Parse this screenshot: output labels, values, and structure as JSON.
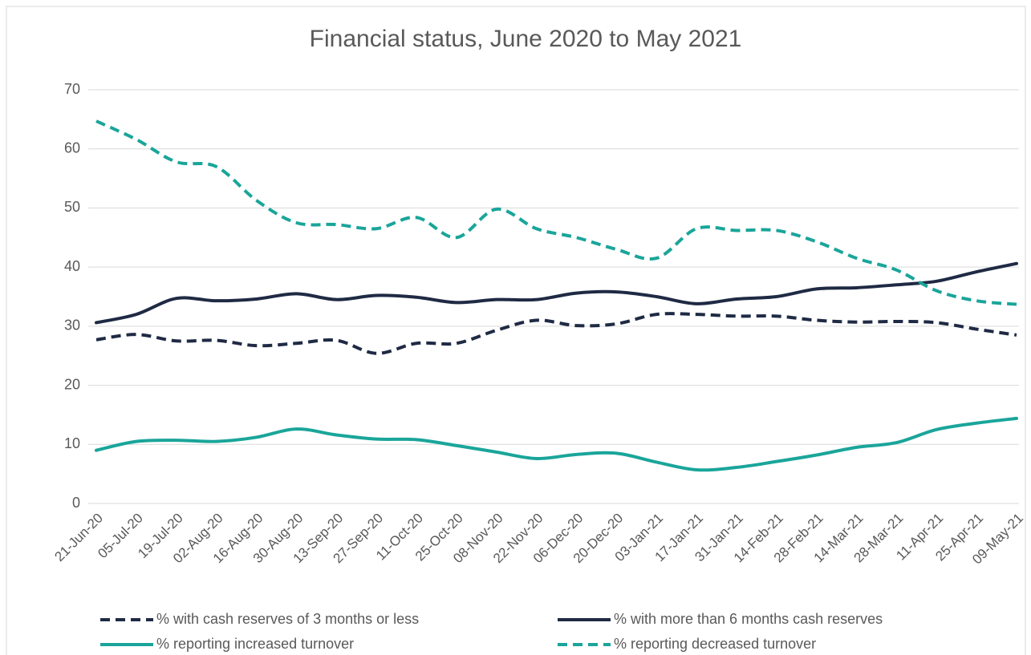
{
  "chart_data": {
    "type": "line",
    "title": "Financial status, June 2020 to May 2021",
    "categories": [
      "21-Jun-20",
      "05-Jul-20",
      "19-Jul-20",
      "02-Aug-20",
      "16-Aug-20",
      "30-Aug-20",
      "13-Sep-20",
      "27-Sep-20",
      "11-Oct-20",
      "25-Oct-20",
      "08-Nov-20",
      "22-Nov-20",
      "06-Dec-20",
      "20-Dec-20",
      "03-Jan-21",
      "17-Jan-21",
      "31-Jan-21",
      "14-Feb-21",
      "28-Feb-21",
      "14-Mar-21",
      "28-Mar-21",
      "11-Apr-21",
      "25-Apr-21",
      "09-May-21"
    ],
    "series": [
      {
        "name": "% with cash reserves of 3 months or less",
        "color": "#1f2a44",
        "dashed": true,
        "values": [
          27.7,
          28.6,
          27.5,
          27.6,
          26.7,
          27.1,
          27.6,
          25.4,
          27.1,
          27.1,
          29.3,
          31.0,
          30.1,
          30.4,
          32.0,
          32.0,
          31.7,
          31.7,
          31.0,
          30.7,
          30.8,
          30.6,
          29.5,
          28.5
        ]
      },
      {
        "name": "% with more than 6 months cash reserves",
        "color": "#1f2a44",
        "dashed": false,
        "values": [
          30.6,
          32.0,
          34.7,
          34.3,
          34.6,
          35.5,
          34.5,
          35.2,
          34.9,
          34.0,
          34.5,
          34.5,
          35.6,
          35.8,
          35.0,
          33.8,
          34.6,
          35.0,
          36.3,
          36.5,
          37.0,
          37.6,
          39.2,
          40.6
        ]
      },
      {
        "name": "% reporting increased turnover",
        "color": "#1aa59a",
        "dashed": false,
        "values": [
          9.0,
          10.5,
          10.7,
          10.5,
          11.2,
          12.6,
          11.6,
          10.9,
          10.8,
          9.8,
          8.7,
          7.6,
          8.3,
          8.5,
          7.0,
          5.7,
          6.1,
          7.1,
          8.2,
          9.5,
          10.3,
          12.5,
          13.6,
          14.4
        ]
      },
      {
        "name": "% reporting decreased turnover",
        "color": "#1aa59a",
        "dashed": true,
        "values": [
          64.7,
          61.6,
          57.8,
          57.0,
          51.3,
          47.5,
          47.2,
          46.5,
          48.4,
          45.0,
          49.8,
          46.5,
          45.0,
          43.0,
          41.5,
          46.5,
          46.2,
          46.2,
          44.3,
          41.5,
          39.5,
          36.0,
          34.3,
          33.7
        ]
      }
    ],
    "ylim": [
      0,
      70
    ],
    "yticks": [
      0,
      10,
      20,
      30,
      40,
      50,
      60,
      70
    ],
    "grid": true,
    "legend": "bottom"
  }
}
